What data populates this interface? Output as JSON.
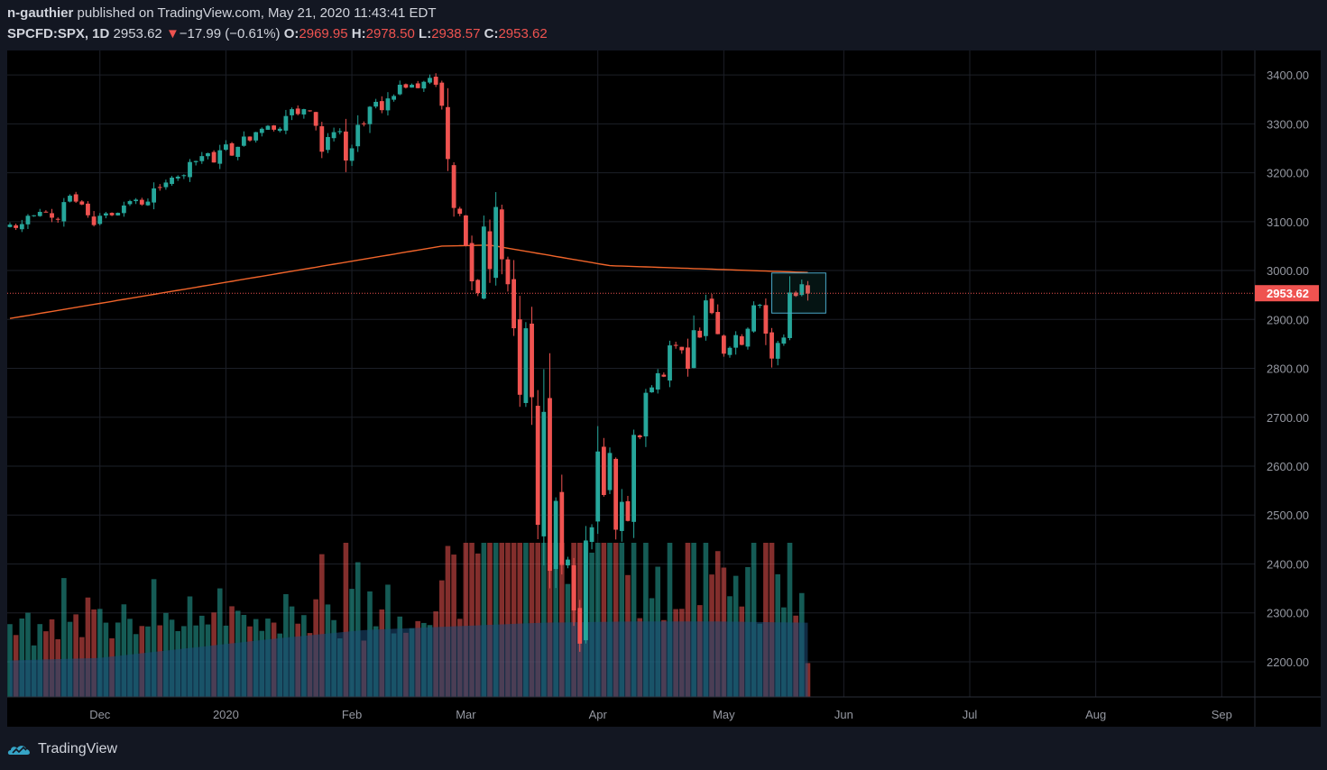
{
  "header": {
    "author": "n-gauthier",
    "published_text": "published on TradingView.com, May 21, 2020 11:43:41 EDT",
    "symbol": "SPCFD:SPX, 1D",
    "last": "2953.62",
    "change_arrow": "▼",
    "change": "−17.99 (−0.61%)",
    "o_label": "O:",
    "o_value": "2969.95",
    "h_label": "H:",
    "h_value": "2978.50",
    "l_label": "L:",
    "l_value": "2938.57",
    "c_label": "C:",
    "c_value": "2953.62"
  },
  "footer": {
    "brand": "TradingView"
  },
  "colors": {
    "background": "#000000",
    "up": "#26a69a",
    "down": "#ef5350",
    "ma": "#f0642a",
    "grid": "#1c1f27",
    "axis_text": "#9598a1",
    "price_tag": "#ef5350",
    "volume_ma_fill": "#1e4d78"
  },
  "chart_data": {
    "type": "candlestick",
    "symbol": "SPCFD:SPX",
    "interval": "1D",
    "y_axis_side": "right",
    "ylim": [
      2128,
      3450
    ],
    "y_ticks": [
      2200,
      2300,
      2400,
      2500,
      2600,
      2700,
      2800,
      2900,
      3000,
      3100,
      3200,
      3300,
      3400
    ],
    "y_tick_labels": [
      "2200.00",
      "2300.00",
      "2400.00",
      "2500.00",
      "2600.00",
      "2700.00",
      "2800.00",
      "2900.00",
      "3000.00",
      "3100.00",
      "3200.00",
      "3300.00",
      "3400.00"
    ],
    "x_ticks": [
      {
        "label": "Dec",
        "index": 15
      },
      {
        "label": "2020",
        "index": 36
      },
      {
        "label": "Feb",
        "index": 57
      },
      {
        "label": "Mar",
        "index": 76
      },
      {
        "label": "Apr",
        "index": 98
      },
      {
        "label": "May",
        "index": 119
      },
      {
        "label": "Jun",
        "index": 139
      },
      {
        "label": "Jul",
        "index": 160
      },
      {
        "label": "Aug",
        "index": 181
      },
      {
        "label": "Sep",
        "index": 202
      }
    ],
    "last_price": 2953.62,
    "last_price_label": "2953.62",
    "highlight_box": {
      "start_index": 127,
      "end_index": 136,
      "low": 2913,
      "high": 2995
    },
    "close": [
      3094,
      3087,
      3095,
      3112,
      3113,
      3120,
      3120,
      3108,
      3104,
      3140,
      3153,
      3141,
      3135,
      3113,
      3093,
      3112,
      3117,
      3113,
      3118,
      3133,
      3142,
      3145,
      3135,
      3141,
      3168,
      3169,
      3180,
      3190,
      3192,
      3195,
      3222,
      3224,
      3234,
      3240,
      3221,
      3246,
      3258,
      3235,
      3253,
      3274,
      3266,
      3283,
      3290,
      3296,
      3288,
      3290,
      3316,
      3330,
      3320,
      3330,
      3326,
      3296,
      3243,
      3273,
      3283,
      3285,
      3225,
      3250,
      3298,
      3300,
      3335,
      3345,
      3328,
      3352,
      3357,
      3380,
      3374,
      3380,
      3373,
      3386,
      3394,
      3380,
      3337,
      3228,
      3128,
      3116,
      3051,
      2978,
      2954,
      3090,
      3003,
      3130,
      3023,
      2972,
      2882,
      2746,
      2882,
      2741,
      2480,
      2711,
      2386,
      2529,
      2398,
      2409,
      2305,
      2237,
      2448,
      2475,
      2630,
      2541,
      2627,
      2470,
      2527,
      2488,
      2664,
      2659,
      2750,
      2761,
      2790,
      2783,
      2847,
      2846,
      2837,
      2799,
      2878,
      2863,
      2939,
      2913,
      2870,
      2830,
      2842,
      2868,
      2848,
      2881,
      2929,
      2930,
      2871,
      2820,
      2852,
      2863,
      2955,
      2948,
      2972,
      2953
    ],
    "volume_ma_sample": [
      0.3,
      0.32,
      0.4,
      0.48,
      0.55,
      0.58,
      0.61,
      0.62,
      0.62,
      0.61
    ]
  }
}
